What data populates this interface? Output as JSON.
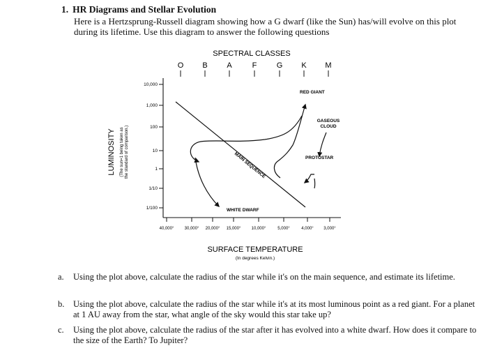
{
  "heading": {
    "number": "1.",
    "title": "HR Diagrams and Stellar Evolution",
    "intro": "Here is a Hertzsprung-Russell diagram showing how a G dwarf (like the Sun) has/will evolve on this plot during its lifetime. Use this diagram to answer the following questions"
  },
  "diagram": {
    "top_title": "SPECTRAL CLASSES",
    "spectral_classes": [
      "O",
      "B",
      "A",
      "F",
      "G",
      "K",
      "M"
    ],
    "y_axis_title": "LUMINOSITY",
    "y_axis_subtitle_1": "(The sun=1 being taken as",
    "y_axis_subtitle_2": "the standard of comparison.)",
    "y_ticks": [
      "10,000",
      "1,000",
      "100",
      "10",
      "1",
      "1/10",
      "1/100"
    ],
    "x_ticks": [
      "40,000°",
      "30,000°",
      "20,000°",
      "15,000°",
      "10,000°",
      "5,000°",
      "4,000°",
      "3,000°"
    ],
    "x_axis_title": "SURFACE TEMPERATURE",
    "x_axis_subtitle": "(In degrees Kelvin.)",
    "labels": {
      "red_giant": "RED GIANT",
      "gaseous_cloud_1": "GASEOUS",
      "gaseous_cloud_2": "CLOUD",
      "protostar": "PROTOSTAR",
      "main_sequence": "MAIN SEQUENCE",
      "white_dwarf": "WHITE DWARF"
    }
  },
  "questions": [
    {
      "letter": "a.",
      "text": "Using the plot above, calculate the radius of the star while it's on the main sequence, and estimate its lifetime."
    },
    {
      "letter": "b.",
      "text": "Using the plot above, calculate the radius of the star while it's at its most luminous point as a red giant. For a planet at 1 AU away from the star, what angle of the sky would this star take up?"
    },
    {
      "letter": "c.",
      "text": "Using the plot above, calculate the radius of the star after it has evolved into a white dwarf. How does it compare to the size of the Earth? To Jupiter?"
    }
  ]
}
